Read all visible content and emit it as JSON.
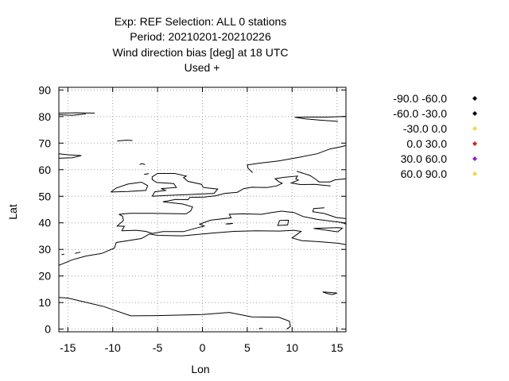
{
  "chart_data": {
    "type": "scatter",
    "title_lines": [
      "Exp: REF   Selection: ALL      0 stations",
      "Period: 20210201-20210226",
      "Wind direction bias [deg] at  18 UTC",
      "Used   +"
    ],
    "xlabel": "Lon",
    "ylabel": "Lat",
    "xlim": [
      -16,
      16
    ],
    "ylim": [
      -1,
      91
    ],
    "xticks": [
      -15,
      -10,
      -5,
      0,
      5,
      10,
      15
    ],
    "yticks": [
      0,
      10,
      20,
      30,
      40,
      50,
      60,
      70,
      80,
      90
    ],
    "grid": true,
    "legend_position": "right",
    "legend": [
      {
        "label": "-90.0 -60.0",
        "color": "#000000"
      },
      {
        "label": "-60.0 -30.0",
        "color": "#000000"
      },
      {
        "label": "-30.0 0.0",
        "color": "#f5d547"
      },
      {
        "label": "0.0 30.0",
        "color": "#d62020"
      },
      {
        "label": "30.0 60.0",
        "color": "#8a1fd0"
      },
      {
        "label": "60.0 90.0",
        "color": "#f5d547"
      }
    ],
    "series": [],
    "coastlines": [
      [
        [
          -16,
          81.3
        ],
        [
          -14,
          81.4
        ],
        [
          -12,
          81.3
        ]
      ],
      [
        [
          -16,
          80.7
        ],
        [
          -14.5,
          80.5
        ],
        [
          -13,
          81.0
        ]
      ],
      [
        [
          -16,
          66.0
        ],
        [
          -15,
          65.6
        ],
        [
          -13.5,
          65.3
        ],
        [
          -14.5,
          64.5
        ],
        [
          -16,
          64.3
        ]
      ],
      [
        [
          -9.5,
          70.8
        ],
        [
          -8.5,
          71.1
        ],
        [
          -7.8,
          71.0
        ]
      ],
      [
        [
          -10.2,
          51.6
        ],
        [
          -9.6,
          53.1
        ],
        [
          -8.3,
          54.6
        ],
        [
          -6.8,
          55.3
        ],
        [
          -6.1,
          54.0
        ],
        [
          -6.3,
          52.2
        ],
        [
          -8.3,
          51.8
        ],
        [
          -10.2,
          51.6
        ]
      ],
      [
        [
          -5.6,
          50.0
        ],
        [
          -4.0,
          50.3
        ],
        [
          -1.0,
          50.7
        ],
        [
          1.3,
          51.1
        ],
        [
          1.7,
          52.7
        ],
        [
          0.1,
          53.3
        ],
        [
          -0.1,
          54.5
        ],
        [
          -1.6,
          55.6
        ],
        [
          -2.1,
          57.0
        ],
        [
          -1.8,
          57.6
        ],
        [
          -3.1,
          58.6
        ],
        [
          -5.0,
          58.6
        ],
        [
          -5.6,
          57.3
        ],
        [
          -5.6,
          56.3
        ],
        [
          -5.1,
          55.2
        ],
        [
          -3.2,
          54.8
        ],
        [
          -2.9,
          53.3
        ],
        [
          -4.6,
          52.9
        ],
        [
          -4.1,
          52.2
        ],
        [
          -5.3,
          51.7
        ],
        [
          -5.6,
          50.0
        ]
      ],
      [
        [
          -6.3,
          58.3
        ],
        [
          -6.0,
          58.5
        ],
        [
          -6.5,
          58.2
        ]
      ],
      [
        [
          -7.0,
          62.0
        ],
        [
          -6.7,
          62.3
        ],
        [
          -6.4,
          61.9
        ]
      ],
      [
        [
          -9.3,
          43.2
        ],
        [
          -8.1,
          43.6
        ],
        [
          -5.8,
          43.6
        ],
        [
          -1.8,
          43.4
        ],
        [
          -1.3,
          44.5
        ],
        [
          -1.1,
          46.0
        ],
        [
          -2.2,
          47.1
        ],
        [
          -4.4,
          47.9
        ],
        [
          -3.0,
          48.8
        ],
        [
          -1.6,
          48.7
        ],
        [
          -1.4,
          49.6
        ],
        [
          0.2,
          49.7
        ],
        [
          1.5,
          50.2
        ],
        [
          2.5,
          51.1
        ],
        [
          3.9,
          51.5
        ],
        [
          4.6,
          52.9
        ],
        [
          5.5,
          53.4
        ],
        [
          7.2,
          53.3
        ],
        [
          8.3,
          53.9
        ],
        [
          8.9,
          54.9
        ],
        [
          8.5,
          55.5
        ],
        [
          8.1,
          56.6
        ],
        [
          9.0,
          57.1
        ],
        [
          10.6,
          57.6
        ],
        [
          10.4,
          56.6
        ],
        [
          10.7,
          56.1
        ],
        [
          9.9,
          55.0
        ],
        [
          10.9,
          54.4
        ],
        [
          12.5,
          54.5
        ],
        [
          13.6,
          54.1
        ],
        [
          14.3,
          53.9
        ]
      ],
      [
        [
          5.6,
          58.9
        ],
        [
          5.1,
          60.5
        ],
        [
          5.0,
          61.8
        ],
        [
          6.5,
          62.5
        ],
        [
          8.5,
          63.3
        ],
        [
          10.5,
          64.5
        ],
        [
          12.8,
          66.0
        ],
        [
          14.2,
          67.8
        ],
        [
          15.5,
          68.7
        ],
        [
          16.0,
          69.1
        ]
      ],
      [
        [
          10.5,
          59.4
        ],
        [
          11.0,
          58.9
        ],
        [
          12.0,
          57.8
        ],
        [
          12.7,
          56.2
        ],
        [
          13.0,
          55.4
        ],
        [
          14.2,
          55.4
        ],
        [
          14.8,
          56.2
        ],
        [
          16.0,
          56.6
        ]
      ],
      [
        [
          15.1,
          78.2
        ],
        [
          13.0,
          78.7
        ],
        [
          11.5,
          79.1
        ],
        [
          10.3,
          79.7
        ],
        [
          11.8,
          79.8
        ],
        [
          13.9,
          79.8
        ],
        [
          16.0,
          80.0
        ]
      ],
      [
        [
          -9.0,
          37.0
        ],
        [
          -8.7,
          38.7
        ],
        [
          -9.5,
          38.8
        ],
        [
          -8.8,
          40.9
        ],
        [
          -8.9,
          42.5
        ],
        [
          -9.3,
          43.2
        ]
      ],
      [
        [
          -9.0,
          37.0
        ],
        [
          -7.4,
          37.2
        ],
        [
          -6.3,
          36.8
        ],
        [
          -5.6,
          36.0
        ],
        [
          -4.4,
          36.7
        ],
        [
          -2.1,
          36.7
        ],
        [
          -0.5,
          38.2
        ],
        [
          0.2,
          38.8
        ],
        [
          -0.3,
          39.5
        ],
        [
          0.9,
          41.0
        ],
        [
          3.2,
          41.9
        ],
        [
          3.0,
          43.2
        ],
        [
          4.5,
          43.4
        ],
        [
          6.6,
          43.2
        ],
        [
          7.6,
          43.8
        ],
        [
          8.8,
          44.4
        ],
        [
          10.2,
          43.9
        ],
        [
          11.2,
          42.4
        ],
        [
          12.8,
          41.3
        ],
        [
          14.0,
          40.8
        ],
        [
          15.6,
          40.1
        ],
        [
          16.0,
          39.5
        ]
      ],
      [
        [
          13.6,
          45.7
        ],
        [
          12.4,
          45.4
        ],
        [
          12.3,
          44.2
        ],
        [
          13.6,
          43.5
        ],
        [
          14.9,
          42.0
        ],
        [
          16.0,
          41.6
        ]
      ],
      [
        [
          -5.9,
          35.8
        ],
        [
          -5.0,
          35.3
        ],
        [
          -2.2,
          35.1
        ],
        [
          1.0,
          36.1
        ],
        [
          3.5,
          36.8
        ],
        [
          6.0,
          37.0
        ],
        [
          8.6,
          36.9
        ],
        [
          10.2,
          37.2
        ],
        [
          11.0,
          36.8
        ],
        [
          10.6,
          35.8
        ],
        [
          10.0,
          34.3
        ],
        [
          11.1,
          33.3
        ],
        [
          13.0,
          32.9
        ],
        [
          15.2,
          32.3
        ],
        [
          16.0,
          31.8
        ]
      ],
      [
        [
          -5.9,
          35.8
        ],
        [
          -6.8,
          34.1
        ],
        [
          -9.6,
          32.6
        ],
        [
          -9.8,
          30.5
        ],
        [
          -11.2,
          28.5
        ],
        [
          -13.0,
          27.5
        ],
        [
          -14.5,
          26.1
        ],
        [
          -16.0,
          24.0
        ]
      ],
      [
        [
          8.6,
          40.9
        ],
        [
          9.6,
          41.0
        ],
        [
          9.5,
          39.2
        ],
        [
          8.4,
          39.0
        ],
        [
          8.6,
          40.9
        ]
      ],
      [
        [
          12.4,
          37.9
        ],
        [
          15.1,
          38.2
        ],
        [
          15.6,
          38.0
        ],
        [
          15.1,
          36.6
        ],
        [
          12.4,
          37.9
        ]
      ],
      [
        [
          -16,
          11.9
        ],
        [
          -15,
          11.7
        ],
        [
          -13.5,
          10.5
        ],
        [
          -11.0,
          8.5
        ],
        [
          -8.0,
          5.0
        ],
        [
          -5.0,
          5.1
        ],
        [
          0.0,
          5.5
        ],
        [
          3.0,
          6.3
        ],
        [
          5.5,
          4.6
        ],
        [
          8.5,
          4.5
        ],
        [
          9.7,
          3.0
        ],
        [
          9.8,
          1.0
        ],
        [
          9.4,
          0.0
        ]
      ],
      [
        [
          13.4,
          14.0
        ],
        [
          14.0,
          13.3
        ],
        [
          14.5,
          13.0
        ],
        [
          15.0,
          13.6
        ],
        [
          13.4,
          14.0
        ]
      ],
      [
        [
          -14.2,
          28.5
        ],
        [
          -13.8,
          28.8
        ],
        [
          -13.6,
          29.0
        ]
      ],
      [
        [
          -15.7,
          28.0
        ],
        [
          -15.4,
          28.2
        ]
      ],
      [
        [
          3.0,
          39.6
        ],
        [
          3.4,
          39.8
        ],
        [
          2.6,
          39.6
        ],
        [
          3.0,
          39.6
        ]
      ],
      [
        [
          6.3,
          0.2
        ],
        [
          6.7,
          0.3
        ]
      ]
    ]
  }
}
